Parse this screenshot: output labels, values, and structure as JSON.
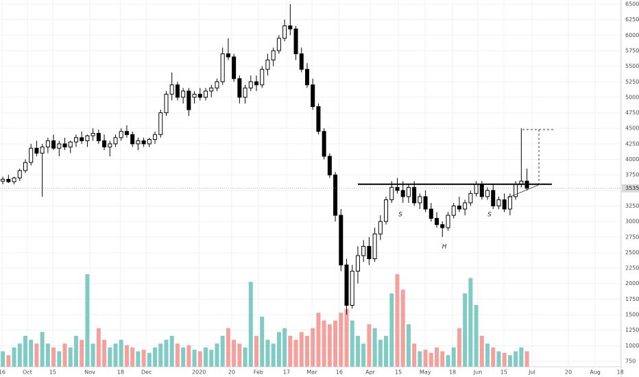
{
  "chart_data": {
    "type": "candlestick",
    "x": [
      1,
      3,
      5,
      7,
      9,
      11,
      13,
      15,
      17,
      19,
      21,
      23,
      25,
      27,
      29,
      31,
      33,
      35,
      37,
      39,
      41,
      43,
      45,
      47,
      49,
      51,
      53,
      55,
      57,
      59,
      61,
      63,
      65,
      67,
      69,
      71,
      73,
      75,
      77,
      79,
      81,
      83,
      85,
      87,
      89,
      91,
      93,
      95,
      97,
      99,
      101,
      103,
      105,
      107,
      109,
      111,
      113,
      115,
      117,
      119,
      121,
      123,
      125,
      127,
      129,
      131,
      133,
      135,
      137,
      139,
      141,
      143,
      145,
      147,
      149,
      151,
      153,
      155,
      157,
      159,
      161,
      163,
      165,
      167,
      169,
      171,
      173,
      175,
      177,
      179,
      181,
      183,
      185,
      187
    ],
    "open": [
      3650,
      3680,
      3640,
      3700,
      3820,
      3950,
      4180,
      4100,
      4200,
      4300,
      4180,
      4250,
      4200,
      4280,
      4350,
      4300,
      4380,
      4420,
      4300,
      4200,
      4250,
      4350,
      4450,
      4400,
      4250,
      4300,
      4250,
      4320,
      4400,
      4750,
      5050,
      5200,
      5000,
      5100,
      5000,
      5050,
      5000,
      5100,
      5150,
      5250,
      5700,
      5650,
      5300,
      5000,
      5150,
      5250,
      5200,
      5450,
      5600,
      5750,
      5950,
      6150,
      6100,
      5700,
      5450,
      5200,
      4850,
      4450,
      4050,
      3750,
      3100,
      2300,
      1650,
      2200,
      2450,
      2600,
      2400,
      2800,
      3000,
      3350,
      3550,
      3500,
      3400,
      3550,
      3300,
      3400,
      3200,
      3050,
      2950,
      2900,
      3100,
      3250,
      3200,
      3300,
      3450,
      3600,
      3400,
      3500,
      3250,
      3350,
      3200,
      3400,
      3600,
      3650
    ],
    "high": [
      3720,
      3750,
      3720,
      3850,
      4000,
      4250,
      4300,
      4250,
      4350,
      4400,
      4300,
      4350,
      4300,
      4400,
      4450,
      4400,
      4500,
      4480,
      4400,
      4300,
      4400,
      4500,
      4550,
      4450,
      4350,
      4350,
      4350,
      4450,
      4800,
      5100,
      5400,
      5250,
      5150,
      5150,
      5100,
      5150,
      5150,
      5200,
      5300,
      5800,
      5950,
      5700,
      5350,
      5200,
      5350,
      5350,
      5500,
      5700,
      5800,
      6000,
      6250,
      6500,
      6150,
      5800,
      5550,
      5300,
      4900,
      4500,
      4100,
      3800,
      3200,
      2400,
      2300,
      2600,
      2700,
      2750,
      2900,
      3100,
      3400,
      3650,
      3700,
      3650,
      3600,
      3650,
      3450,
      3500,
      3300,
      3150,
      3000,
      3150,
      3300,
      3400,
      3350,
      3500,
      3650,
      3650,
      3550,
      3600,
      3400,
      3450,
      3450,
      3650,
      4500,
      3850
    ],
    "low": [
      3600,
      3620,
      3600,
      3650,
      3780,
      3900,
      4050,
      3400,
      4100,
      4150,
      4050,
      4150,
      4100,
      4200,
      4250,
      4200,
      4300,
      4250,
      4150,
      4050,
      4200,
      4300,
      4350,
      4200,
      4150,
      4200,
      4200,
      4250,
      4350,
      4700,
      4950,
      4950,
      4900,
      4700,
      4900,
      4950,
      4950,
      5000,
      5100,
      5200,
      5600,
      5250,
      4900,
      4900,
      5100,
      5100,
      5150,
      5350,
      5500,
      5700,
      5900,
      6000,
      5600,
      5400,
      5150,
      4800,
      4400,
      4000,
      3700,
      3000,
      2200,
      1500,
      1600,
      2000,
      2350,
      2300,
      2350,
      2700,
      2950,
      3300,
      3450,
      3300,
      3300,
      3250,
      3200,
      3150,
      3000,
      2900,
      2750,
      2850,
      3050,
      3150,
      3100,
      3250,
      3400,
      3350,
      3350,
      3200,
      3200,
      3150,
      3100,
      3350,
      3550,
      3500
    ],
    "close": [
      3680,
      3640,
      3700,
      3820,
      3950,
      4180,
      4100,
      4200,
      4300,
      4180,
      4250,
      4200,
      4280,
      4350,
      4300,
      4380,
      4420,
      4300,
      4200,
      4250,
      4350,
      4450,
      4400,
      4250,
      4300,
      4250,
      4320,
      4400,
      4750,
      5050,
      5200,
      5000,
      5100,
      4800,
      5050,
      5000,
      5100,
      5150,
      5250,
      5700,
      5650,
      5300,
      5000,
      5150,
      5250,
      5200,
      5450,
      5600,
      5750,
      5950,
      6150,
      6100,
      5700,
      5450,
      5200,
      4850,
      4450,
      4050,
      3750,
      3100,
      2300,
      1650,
      2200,
      2450,
      2600,
      2400,
      2800,
      3000,
      3350,
      3550,
      3500,
      3400,
      3550,
      3300,
      3400,
      3200,
      3050,
      2950,
      2900,
      3100,
      3250,
      3200,
      3300,
      3450,
      3600,
      3400,
      3500,
      3250,
      3350,
      3200,
      3400,
      3600,
      3650,
      3535
    ],
    "volume": [
      20,
      15,
      25,
      30,
      40,
      35,
      30,
      45,
      30,
      25,
      20,
      30,
      25,
      40,
      35,
      120,
      30,
      50,
      35,
      25,
      30,
      35,
      28,
      25,
      20,
      22,
      18,
      25,
      30,
      35,
      40,
      30,
      25,
      28,
      22,
      20,
      25,
      22,
      30,
      40,
      50,
      35,
      30,
      25,
      110,
      40,
      65,
      35,
      30,
      45,
      50,
      40,
      35,
      45,
      40,
      50,
      70,
      60,
      55,
      60,
      70,
      75,
      60,
      40,
      30,
      55,
      50,
      35,
      40,
      95,
      120,
      100,
      55,
      30,
      20,
      22,
      18,
      25,
      20,
      15,
      25,
      50,
      95,
      115,
      80,
      40,
      30,
      25,
      20,
      18,
      15,
      20,
      25,
      20
    ],
    "up_color": "#ffffff",
    "down_color": "#000000",
    "border_color": "#000000",
    "volume_up_color": "#80cbc4",
    "volume_down_color": "#f4a09c",
    "xlim": [
      0,
      220.2
    ],
    "xticks": [
      {
        "value": 0.7,
        "label": "16"
      },
      {
        "value": 9.7,
        "label": "Oct"
      },
      {
        "value": 18.7,
        "label": "15"
      },
      {
        "value": 31.9,
        "label": "Nov"
      },
      {
        "value": 42.8,
        "label": "18"
      },
      {
        "value": 52,
        "label": "Dec"
      },
      {
        "value": 70.6,
        "label": "2020"
      },
      {
        "value": 82.2,
        "label": "20"
      },
      {
        "value": 91.7,
        "label": "Feb"
      },
      {
        "value": 101.7,
        "label": "17"
      },
      {
        "value": 110.7,
        "label": "Mar"
      },
      {
        "value": 120.4,
        "label": "16"
      },
      {
        "value": 131.4,
        "label": "Apr"
      },
      {
        "value": 141.4,
        "label": "15"
      },
      {
        "value": 150.9,
        "label": "May"
      },
      {
        "value": 160.6,
        "label": "18"
      },
      {
        "value": 169.6,
        "label": "Jun"
      },
      {
        "value": 178.8,
        "label": "15"
      },
      {
        "value": 188.8,
        "label": "Jul"
      },
      {
        "value": 201.7,
        "label": "20"
      },
      {
        "value": 211.2,
        "label": "Aug"
      },
      {
        "value": 220.1,
        "label": "18"
      }
    ],
    "ylim": [
      750,
      6500
    ],
    "yticks": [
      750,
      1000,
      1250,
      1500,
      1750,
      2000,
      2250,
      2500,
      2750,
      3000,
      3250,
      3500,
      3750,
      4000,
      4250,
      4500,
      4750,
      5000,
      5250,
      5500,
      5750,
      6000,
      6250,
      6500
    ],
    "grid": true,
    "last_price": 3535,
    "neckline": 3600,
    "target": 4480,
    "annotations": [
      "S",
      "H",
      "S"
    ]
  }
}
